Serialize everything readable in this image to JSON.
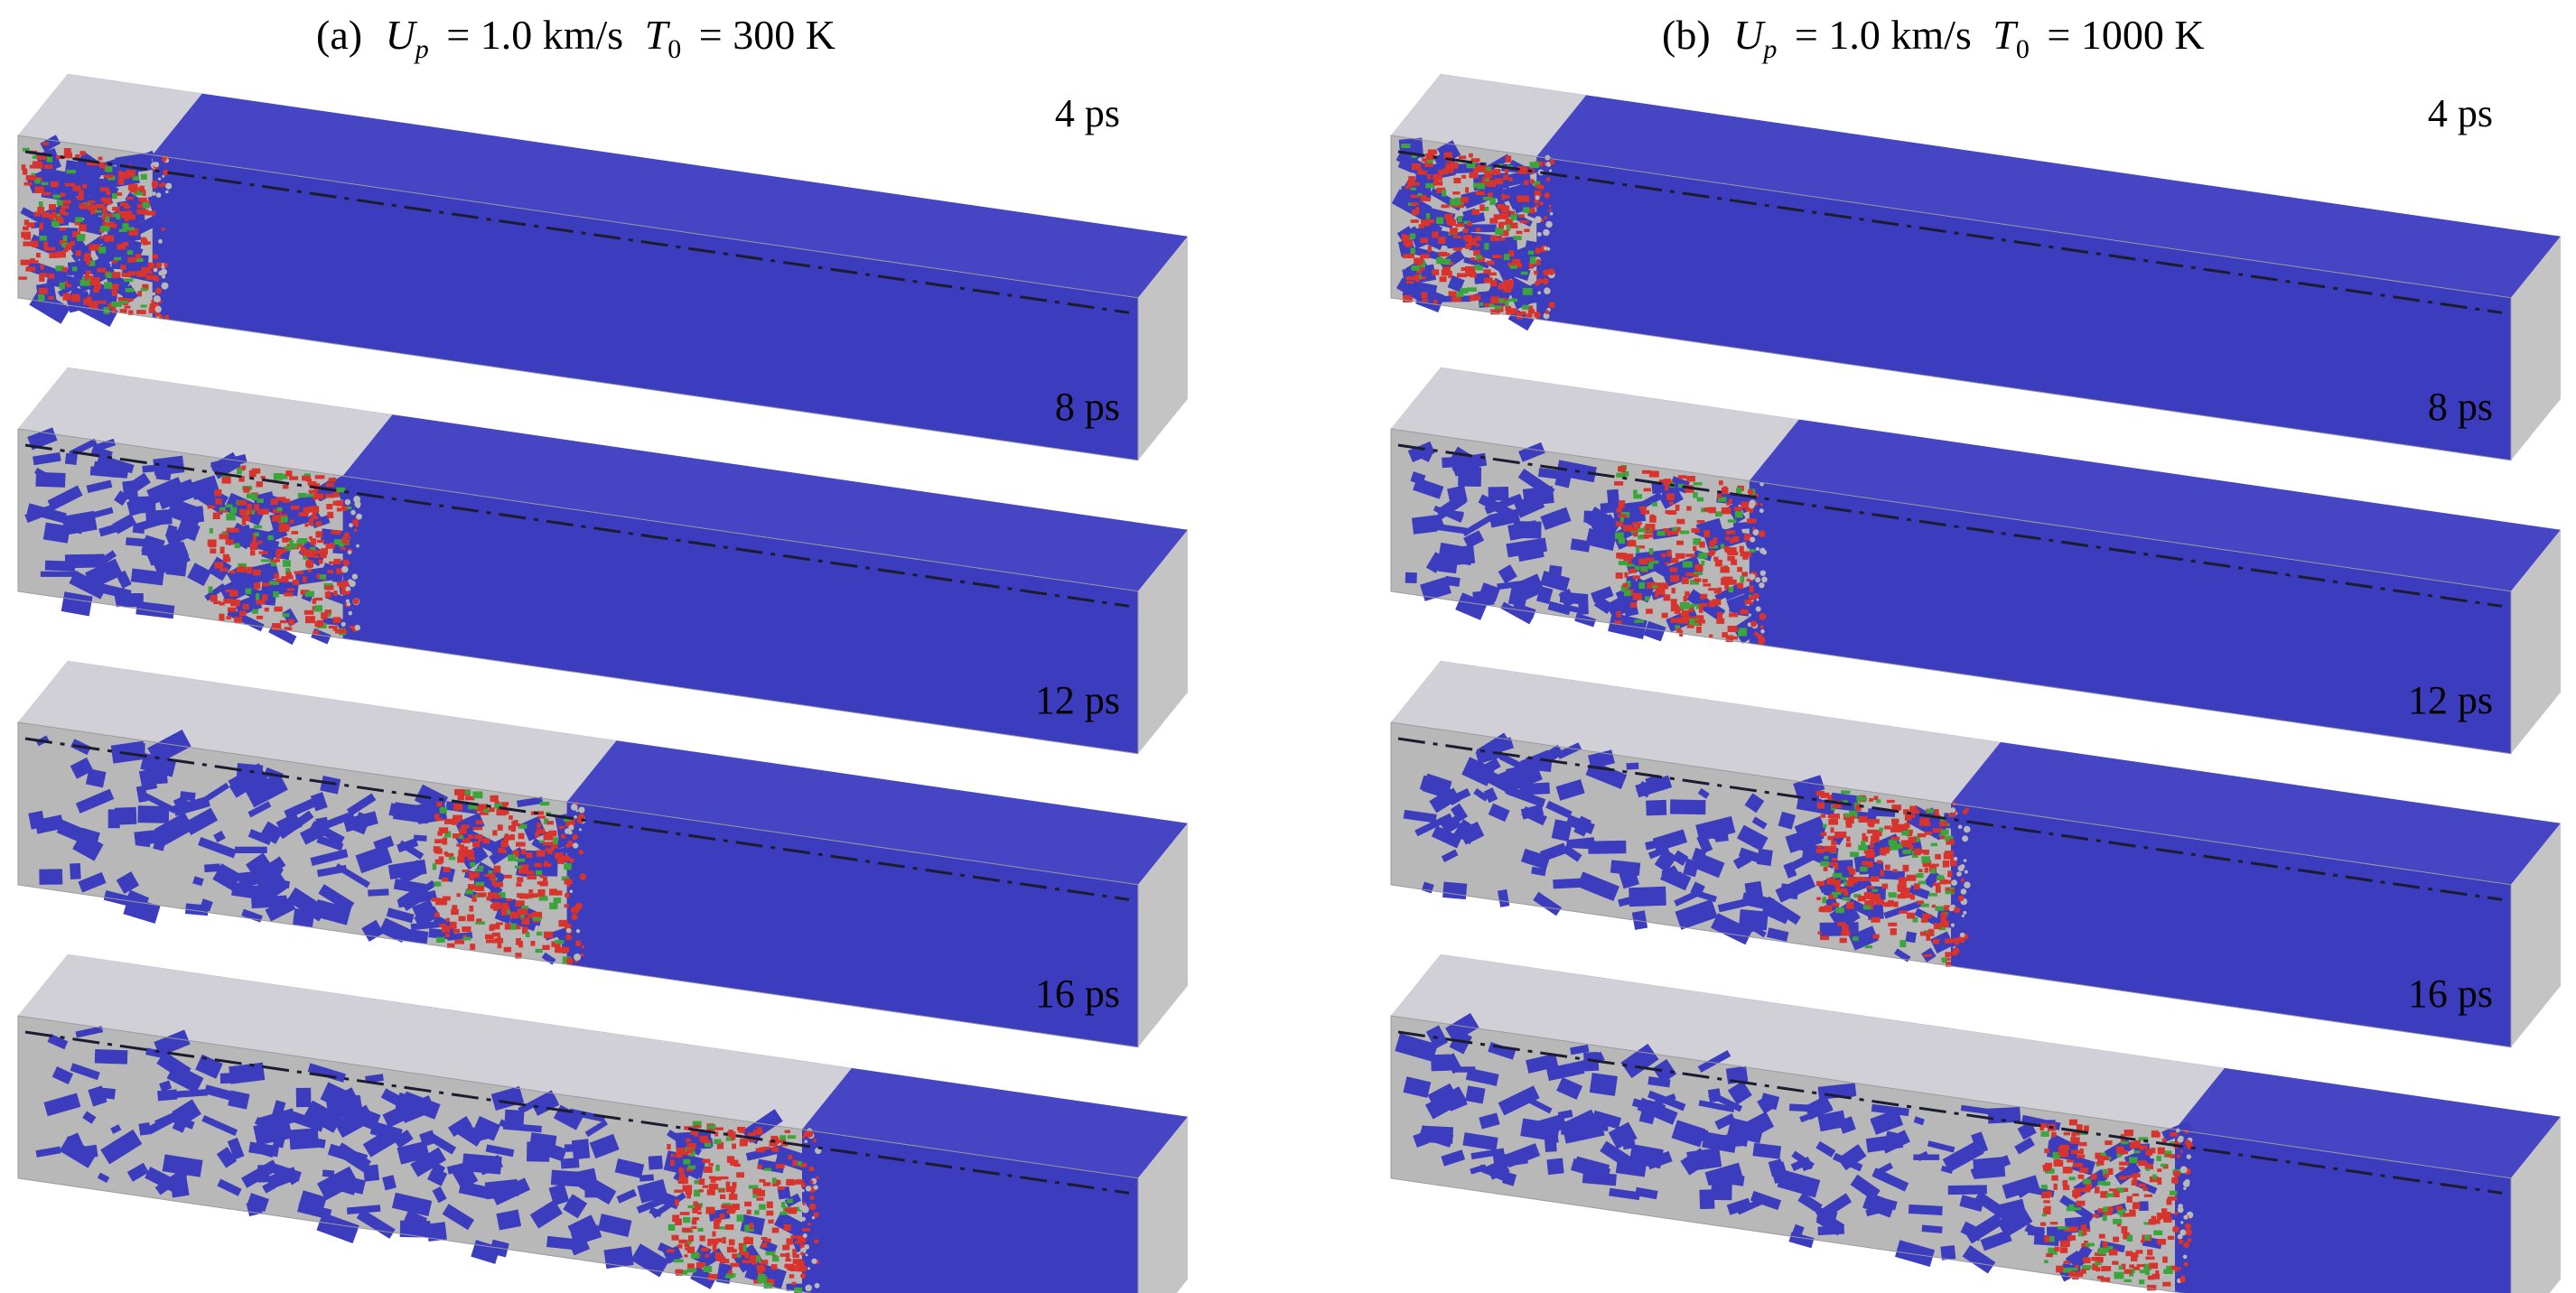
{
  "panels": [
    {
      "id": "a",
      "caption": {
        "prefix": "(a)",
        "symbol": "U",
        "sub": "p",
        "velocity": "= 1.0 km/s",
        "tsymbol": "T",
        "tsub": "0",
        "temperature": "= 300 K"
      },
      "frames": [
        {
          "label": "4 ps",
          "front": 0.12
        },
        {
          "label": "8 ps",
          "front": 0.29
        },
        {
          "label": "12 ps",
          "front": 0.49
        },
        {
          "label": "16 ps",
          "front": 0.7
        }
      ]
    },
    {
      "id": "b",
      "caption": {
        "prefix": "(b)",
        "symbol": "U",
        "sub": "p",
        "velocity": "= 1.0 km/s",
        "tsymbol": "T",
        "tsub": "0",
        "temperature": "= 1000 K"
      },
      "frames": [
        {
          "label": "4 ps",
          "front": 0.13
        },
        {
          "label": "8 ps",
          "front": 0.32
        },
        {
          "label": "12 ps",
          "front": 0.5
        },
        {
          "label": "16 ps",
          "front": 0.7
        }
      ]
    }
  ],
  "colors": {
    "bulk": "#3c3cbe",
    "disordered": "#b8b8b8",
    "hcp": "#d8332d",
    "fcc": "#3aa53a",
    "end_face": "#c4c4c4",
    "top_face": "#d0d0d6",
    "top_face_bulk": "#4646c4"
  }
}
